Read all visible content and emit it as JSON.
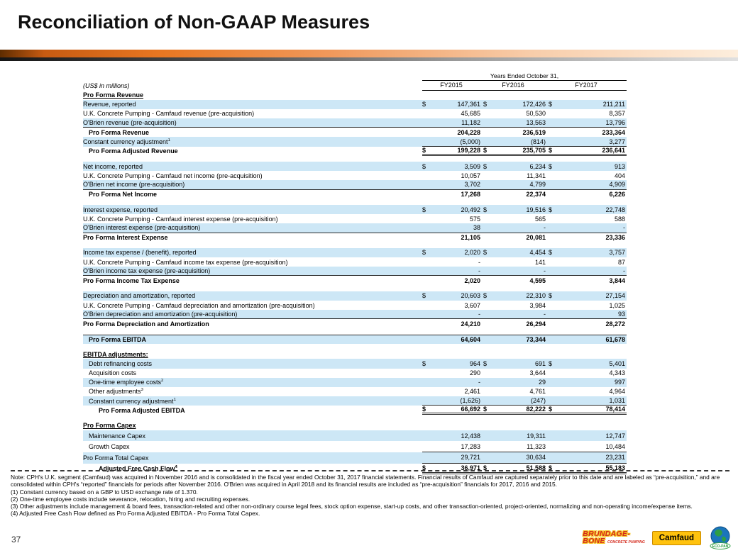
{
  "title": "Reconciliation of Non-GAAP Measures",
  "page_number": "37",
  "colors": {
    "accent_orange": "#E87722",
    "row_blue": "#CDE7F6"
  },
  "table": {
    "units_label": "(US$ in millions)",
    "header": {
      "span_label": "Years Ended October 31,",
      "columns": [
        "FY2015",
        "FY2016",
        "FY2017"
      ]
    },
    "rows": [
      {
        "type": "sec",
        "label": "Pro Forma Revenue"
      },
      {
        "type": "row",
        "label": "Revenue, reported",
        "dollar": true,
        "values": [
          "147,361",
          "172,426",
          "211,211"
        ],
        "bg": "blue"
      },
      {
        "type": "row",
        "label": "U.K. Concrete Pumping - Camfaud revenue (pre-acquisition)",
        "values": [
          "45,685",
          "50,530",
          "8,357"
        ],
        "bg": "white"
      },
      {
        "type": "row",
        "label": "O'Brien revenue (pre-acquisition)",
        "values": [
          "11,182",
          "13,563",
          "13,796"
        ],
        "bg": "blue",
        "border": "full"
      },
      {
        "type": "row",
        "label": "Pro Forma Revenue",
        "bold": true,
        "indent": 1,
        "values": [
          "204,228",
          "236,519",
          "233,364"
        ],
        "bg": "white"
      },
      {
        "type": "row",
        "label": "Constant currency adjustment",
        "sup": "1",
        "values": [
          "(5,000)",
          "(814)",
          "3,277"
        ],
        "bg": "blue",
        "border": "num"
      },
      {
        "type": "row",
        "label": "Pro Forma Adjusted Revenue",
        "bold": true,
        "indent": 1,
        "dollar": true,
        "values": [
          "199,228",
          "235,705",
          "236,641"
        ],
        "bg": "white",
        "border": "dbl"
      },
      {
        "type": "sp"
      },
      {
        "type": "row",
        "label": "Net income, reported",
        "dollar": true,
        "values": [
          "3,509",
          "6,234",
          "913"
        ],
        "bg": "blue"
      },
      {
        "type": "row",
        "label": "U.K. Concrete Pumping - Camfaud net income (pre-acquisition)",
        "values": [
          "10,057",
          "11,341",
          "404"
        ],
        "bg": "white"
      },
      {
        "type": "row",
        "label": "O'Brien net income (pre-acquisition)",
        "values": [
          "3,702",
          "4,799",
          "4,909"
        ],
        "bg": "blue",
        "border": "full"
      },
      {
        "type": "row",
        "label": "Pro Forma Net Income",
        "bold": true,
        "indent": 1,
        "values": [
          "17,268",
          "22,374",
          "6,226"
        ],
        "bg": "white"
      },
      {
        "type": "sp"
      },
      {
        "type": "row",
        "label": "Interest expense, reported",
        "dollar": true,
        "values": [
          "20,492",
          "19,516",
          "22,748"
        ],
        "bg": "blue"
      },
      {
        "type": "row",
        "label": "U.K. Concrete Pumping - Camfaud interest expense (pre-acquisition)",
        "values": [
          "575",
          "565",
          "588"
        ],
        "bg": "white"
      },
      {
        "type": "row",
        "label": "O'Brien interest expense (pre-acquisition)",
        "values": [
          "38",
          "-",
          "-"
        ],
        "bg": "blue",
        "border": "full"
      },
      {
        "type": "row",
        "label": "Pro Forma Interest Expense",
        "bold": true,
        "values": [
          "21,105",
          "20,081",
          "23,336"
        ],
        "bg": "white"
      },
      {
        "type": "sp"
      },
      {
        "type": "row",
        "label": "Income tax expense / (benefit), reported",
        "dollar": true,
        "values": [
          "2,020",
          "4,454",
          "3,757"
        ],
        "bg": "blue"
      },
      {
        "type": "row",
        "label": "U.K. Concrete Pumping - Camfaud income tax expense (pre-acquisition)",
        "values": [
          "-",
          "141",
          "87"
        ],
        "bg": "white"
      },
      {
        "type": "row",
        "label": "O'Brien income tax expense (pre-acquisition)",
        "values": [
          "-",
          "-",
          "-"
        ],
        "bg": "blue",
        "border": "full"
      },
      {
        "type": "row",
        "label": "Pro Forma Income Tax Expense",
        "bold": true,
        "values": [
          "2,020",
          "4,595",
          "3,844"
        ],
        "bg": "white"
      },
      {
        "type": "sp"
      },
      {
        "type": "row",
        "label": "Depreciation and amortization, reported",
        "dollar": true,
        "values": [
          "20,603",
          "22,310",
          "27,154"
        ],
        "bg": "blue"
      },
      {
        "type": "row",
        "label": "U.K. Concrete Pumping - Camfaud depreciation and amortization (pre-acquisition)",
        "values": [
          "3,607",
          "3,984",
          "1,025"
        ],
        "bg": "white"
      },
      {
        "type": "row",
        "label": "O'Brien depreciation and amortization (pre-acquisition)",
        "values": [
          "-",
          "-",
          "93"
        ],
        "bg": "blue",
        "border": "full"
      },
      {
        "type": "row",
        "label": "Pro Forma Depreciation and Amortization",
        "bold": true,
        "values": [
          "24,210",
          "26,294",
          "28,272"
        ],
        "bg": "white"
      },
      {
        "type": "sp"
      },
      {
        "type": "row",
        "label": "Pro Forma EBITDA",
        "bold": true,
        "indent": 1,
        "values": [
          "64,604",
          "73,344",
          "61,678"
        ],
        "bg": "blue",
        "border": "top"
      },
      {
        "type": "sp"
      },
      {
        "type": "sec",
        "label": "EBITDA adjustments:"
      },
      {
        "type": "row",
        "label": "Debt refinancing costs",
        "indent": 1,
        "dollar": true,
        "values": [
          "964",
          "691",
          "5,401"
        ],
        "bg": "blue"
      },
      {
        "type": "row",
        "label": "Acquisition costs",
        "indent": 1,
        "values": [
          "290",
          "3,644",
          "4,343"
        ],
        "bg": "white"
      },
      {
        "type": "row",
        "label": "One-time employee costs",
        "sup": "2",
        "indent": 1,
        "values": [
          "-",
          "29",
          "997"
        ],
        "bg": "blue"
      },
      {
        "type": "row",
        "label": "Other adjustments",
        "sup": "3",
        "indent": 1,
        "values": [
          "2,461",
          "4,761",
          "4,964"
        ],
        "bg": "white"
      },
      {
        "type": "row",
        "label": "Constant currency adjustment",
        "sup": "1",
        "indent": 1,
        "values": [
          "(1,626)",
          "(247)",
          "1,031"
        ],
        "bg": "blue",
        "border": "num"
      },
      {
        "type": "row",
        "label": "Pro Forma Adjusted EBITDA",
        "bold": true,
        "indent": 2,
        "dollar": true,
        "values": [
          "66,692",
          "82,222",
          "78,414"
        ],
        "bg": "white",
        "border": "dbl"
      },
      {
        "type": "sp"
      },
      {
        "type": "sec",
        "label": "Pro Forma Capex"
      },
      {
        "type": "row",
        "label": "Maintenance Capex",
        "indent": 1,
        "tall": true,
        "values": [
          "12,438",
          "19,311",
          "12,747"
        ],
        "bg": "blue"
      },
      {
        "type": "row",
        "label": "Growth Capex",
        "indent": 1,
        "tall": true,
        "values": [
          "17,283",
          "11,323",
          "10,484"
        ],
        "bg": "white",
        "border": "num"
      },
      {
        "type": "row",
        "label": "Pro Forma Total Capex",
        "tall": true,
        "values": [
          "29,721",
          "30,634",
          "23,231"
        ],
        "bg": "blue",
        "border": "num"
      },
      {
        "type": "row",
        "label": "Adjusted Free Cash Flow",
        "sup": "4",
        "bold": true,
        "indent": 2,
        "tall": true,
        "dollar": true,
        "values": [
          "36,971",
          "51,588",
          "55,183"
        ],
        "bg": "white",
        "border": "dbl"
      }
    ]
  },
  "footnotes": {
    "note": "Note: CPH's U.K. segment (Camfaud) was acquired in November 2016 and is consolidated in the fiscal year ended October 31, 2017 financial statements. Financial results of Camfaud are captured separately prior to this date and are labeled as “pre-acquisition,” and are consolidated within CPH's “reported” financials for periods after November 2016. O'Brien was acquired in April 2018 and its financial results are included as “pre-acquisition” financials for 2017, 2016 and 2015.",
    "fn1": "(1) Constant currency based on a GBP to USD exchange rate of 1.370.",
    "fn2": "(2) One-time employee costs include severance, relocation, hiring and recruiting expenses.",
    "fn3": "(3) Other adjustments include management & board fees, transaction-related and other non-ordinary course legal fees, stock option expense, start-up costs, and other transaction-oriented, project-oriented, normalizing and non-operating income/expense items.",
    "fn4": "(4) Adjusted Free Cash Flow defined as Pro Forma Adjusted EBITDA - Pro Forma Total Capex."
  },
  "logos": {
    "brundage_bone": {
      "line1": "BRUNDAGE-",
      "line2": "BONE",
      "tagline": "CONCRETE PUMPING"
    },
    "camfaud": "Camfaud",
    "eco_pan": "ECO-PAN"
  }
}
